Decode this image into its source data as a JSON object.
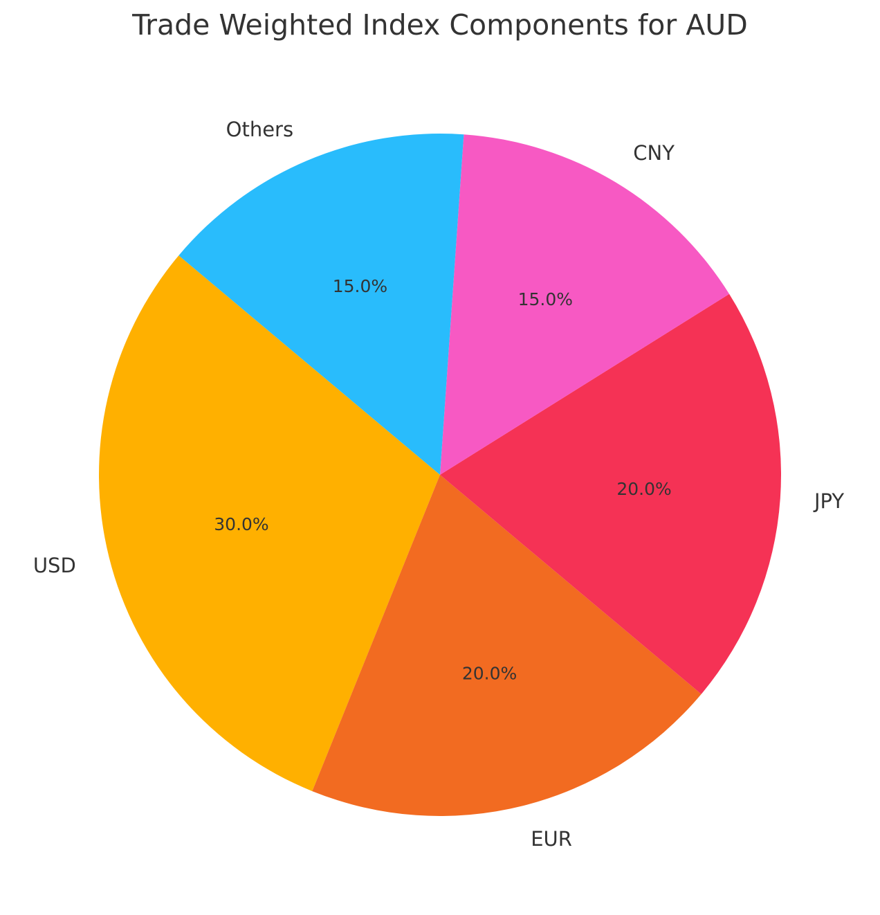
{
  "chart_data": {
    "type": "pie",
    "title": "Trade Weighted Index Components for AUD",
    "start_angle_deg": 140,
    "direction": "counterclockwise",
    "slices": [
      {
        "label": "USD",
        "value": 30.0,
        "pct_label": "30.0%",
        "color": "#FFB000"
      },
      {
        "label": "EUR",
        "value": 20.0,
        "pct_label": "20.0%",
        "color": "#F26B21"
      },
      {
        "label": "JPY",
        "value": 20.0,
        "pct_label": "20.0%",
        "color": "#F53255"
      },
      {
        "label": "CNY",
        "value": 15.0,
        "pct_label": "15.0%",
        "color": "#F759C3"
      },
      {
        "label": "Others",
        "value": 15.0,
        "pct_label": "15.0%",
        "color": "#29BCFC"
      }
    ]
  }
}
